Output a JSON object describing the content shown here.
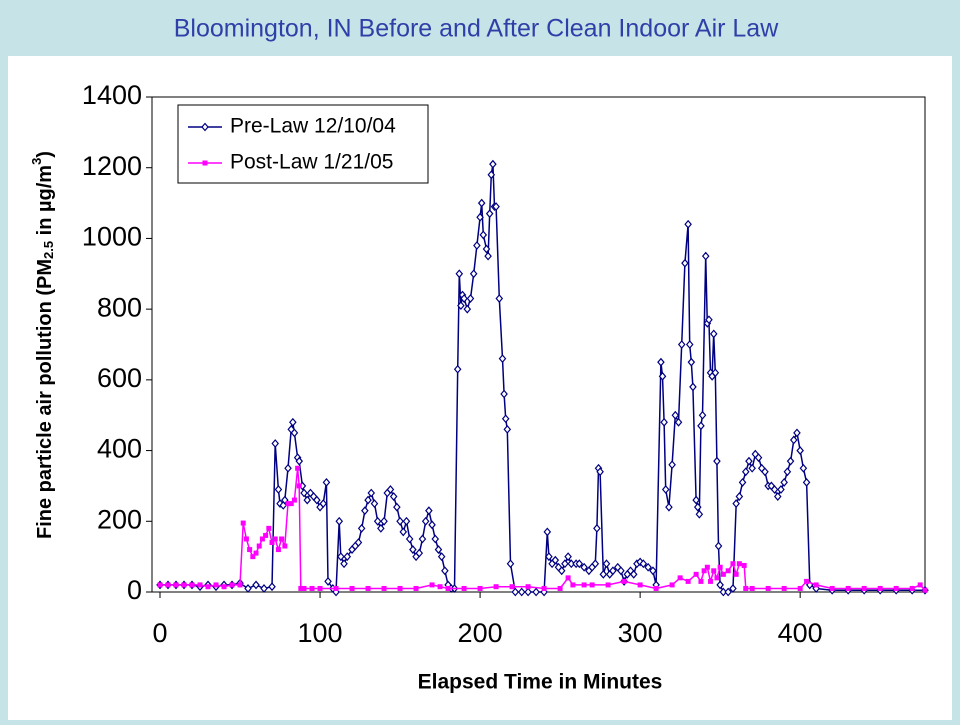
{
  "chart_data": {
    "type": "line",
    "title": "Bloomington, IN Before and After Clean Indoor Air Law",
    "xlabel": "Elapsed Time in Minutes",
    "ylabel": [
      "Fine particle air pollution (PM",
      "2.5",
      " in µg/m",
      "3",
      ")"
    ],
    "xlim": [
      -5,
      478
    ],
    "xticks": [
      0,
      100,
      200,
      300,
      400
    ],
    "ylim": [
      0,
      1400
    ],
    "yticks": [
      0,
      200,
      400,
      600,
      800,
      1000,
      1200,
      1400
    ],
    "legend": "upper left",
    "series": [
      {
        "name": "Pre-Law 12/10/04",
        "color": "#000080",
        "marker": "diamond",
        "x": [
          0,
          5,
          10,
          15,
          20,
          25,
          30,
          35,
          40,
          45,
          50,
          55,
          60,
          65,
          70,
          72,
          74,
          75,
          77,
          78,
          80,
          82,
          83,
          84,
          86,
          87,
          89,
          90,
          92,
          94,
          96,
          98,
          100,
          102,
          104,
          105,
          108,
          110,
          112,
          113,
          115,
          117,
          120,
          122,
          124,
          126,
          128,
          130,
          132,
          134,
          136,
          138,
          140,
          142,
          144,
          146,
          148,
          150,
          152,
          154,
          156,
          158,
          160,
          162,
          164,
          166,
          168,
          170,
          172,
          174,
          176,
          178,
          180,
          182,
          184,
          186,
          187,
          188,
          189,
          190,
          192,
          194,
          196,
          198,
          200,
          201,
          202,
          204,
          205,
          206,
          207,
          208,
          209,
          210,
          212,
          214,
          215,
          216,
          217,
          219,
          222,
          226,
          230,
          235,
          240,
          242,
          243,
          245,
          247,
          249,
          251,
          253,
          255,
          257,
          260,
          262,
          265,
          268,
          270,
          272,
          273,
          274,
          275,
          277,
          279,
          281,
          283,
          286,
          288,
          290,
          292,
          294,
          296,
          298,
          300,
          302,
          305,
          308,
          310,
          313,
          314,
          315,
          316,
          318,
          320,
          322,
          324,
          326,
          328,
          330,
          331,
          332,
          333,
          335,
          336,
          337,
          338,
          339,
          341,
          342,
          343,
          344,
          345,
          346,
          347,
          348,
          349,
          350,
          352,
          355,
          358,
          360,
          362,
          364,
          366,
          368,
          370,
          372,
          374,
          376,
          378,
          380,
          382,
          384,
          386,
          388,
          390,
          392,
          394,
          396,
          398,
          400,
          402,
          404,
          406,
          410,
          420,
          430,
          440,
          450,
          460,
          470,
          478
        ],
        "values": [
          20,
          20,
          20,
          20,
          20,
          15,
          20,
          15,
          20,
          20,
          25,
          10,
          20,
          10,
          15,
          420,
          290,
          250,
          245,
          260,
          350,
          460,
          480,
          450,
          380,
          370,
          300,
          280,
          260,
          280,
          270,
          260,
          240,
          250,
          310,
          30,
          10,
          0,
          200,
          100,
          80,
          100,
          120,
          130,
          140,
          180,
          230,
          260,
          280,
          250,
          200,
          180,
          200,
          280,
          290,
          270,
          240,
          200,
          170,
          200,
          150,
          120,
          100,
          110,
          150,
          200,
          230,
          190,
          150,
          120,
          100,
          60,
          20,
          10,
          10,
          630,
          900,
          810,
          840,
          830,
          800,
          830,
          900,
          980,
          1060,
          1100,
          1010,
          970,
          950,
          1070,
          1180,
          1210,
          1090,
          1090,
          830,
          660,
          560,
          490,
          460,
          80,
          0,
          0,
          0,
          0,
          0,
          170,
          100,
          80,
          90,
          70,
          60,
          80,
          100,
          80,
          80,
          80,
          70,
          60,
          70,
          80,
          180,
          350,
          340,
          50,
          80,
          50,
          60,
          70,
          60,
          30,
          50,
          60,
          50,
          80,
          85,
          80,
          70,
          60,
          20,
          650,
          610,
          480,
          290,
          240,
          360,
          500,
          480,
          700,
          930,
          1040,
          700,
          650,
          580,
          260,
          240,
          220,
          470,
          500,
          950,
          760,
          770,
          620,
          610,
          730,
          620,
          370,
          130,
          20,
          0,
          0,
          10,
          250,
          270,
          310,
          340,
          370,
          350,
          390,
          380,
          350,
          340,
          300,
          300,
          290,
          270,
          290,
          310,
          340,
          370,
          430,
          450,
          400,
          350,
          310,
          20,
          10,
          5,
          5,
          5,
          5,
          5,
          5,
          5
        ]
      },
      {
        "name": "Post-Law 1/21/05",
        "color": "#ff00ff",
        "marker": "square",
        "x": [
          0,
          5,
          10,
          15,
          20,
          25,
          30,
          35,
          40,
          45,
          50,
          52,
          54,
          56,
          58,
          60,
          62,
          64,
          66,
          68,
          70,
          72,
          74,
          76,
          78,
          80,
          82,
          84,
          86,
          87,
          88,
          90,
          95,
          100,
          110,
          120,
          130,
          140,
          150,
          160,
          170,
          175,
          180,
          190,
          200,
          210,
          220,
          230,
          240,
          250,
          255,
          258,
          265,
          270,
          280,
          290,
          300,
          310,
          320,
          325,
          330,
          335,
          338,
          340,
          342,
          344,
          346,
          348,
          350,
          352,
          355,
          358,
          360,
          362,
          365,
          366,
          370,
          380,
          390,
          400,
          404,
          410,
          420,
          430,
          440,
          450,
          460,
          470,
          475,
          478
        ],
        "values": [
          20,
          20,
          20,
          20,
          20,
          20,
          15,
          20,
          15,
          20,
          20,
          195,
          150,
          120,
          100,
          110,
          130,
          150,
          160,
          180,
          140,
          150,
          120,
          150,
          130,
          250,
          250,
          260,
          350,
          300,
          10,
          10,
          10,
          10,
          10,
          10,
          10,
          10,
          10,
          10,
          20,
          15,
          10,
          10,
          10,
          15,
          15,
          15,
          10,
          10,
          40,
          20,
          20,
          20,
          20,
          30,
          20,
          10,
          20,
          40,
          30,
          50,
          30,
          60,
          70,
          30,
          60,
          40,
          70,
          50,
          60,
          80,
          50,
          80,
          75,
          10,
          10,
          10,
          10,
          10,
          30,
          20,
          10,
          10,
          10,
          10,
          10,
          10,
          20,
          5
        ]
      }
    ]
  }
}
